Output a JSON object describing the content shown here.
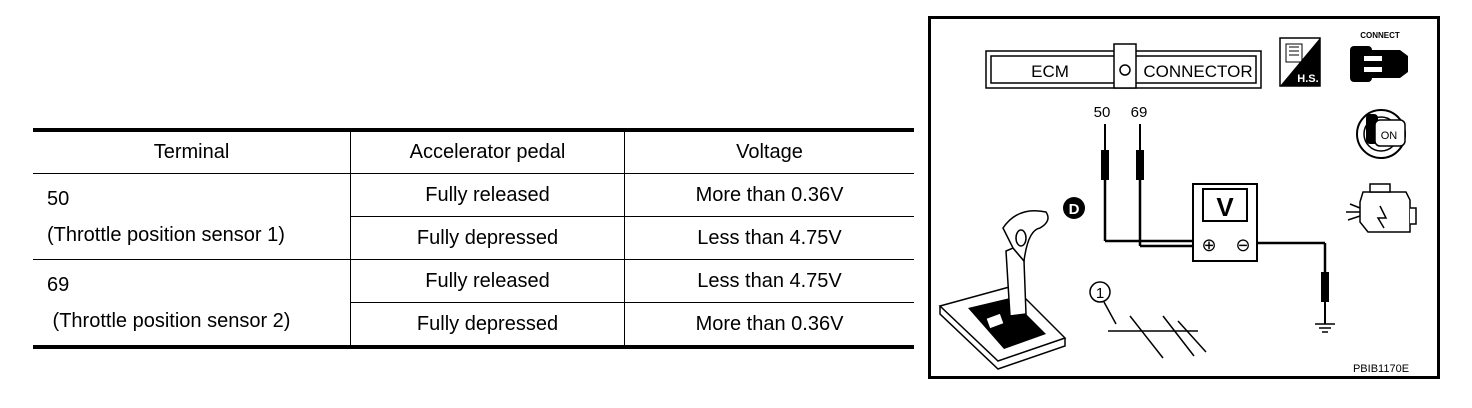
{
  "table": {
    "headers": [
      "Terminal",
      "Accelerator pedal",
      "Voltage"
    ],
    "rows": [
      {
        "terminal_number": "50",
        "terminal_name": "(Throttle position sensor 1)",
        "conditions": [
          {
            "pedal": "Fully released",
            "voltage": "More than 0.36V"
          },
          {
            "pedal": "Fully depressed",
            "voltage": "Less than 4.75V"
          }
        ]
      },
      {
        "terminal_number": "69",
        "terminal_name": " (Throttle position sensor 2)",
        "conditions": [
          {
            "pedal": "Fully released",
            "voltage": "Less than 4.75V"
          },
          {
            "pedal": "Fully depressed",
            "voltage": "More than 0.36V"
          }
        ]
      }
    ]
  },
  "diagram": {
    "connector_left": "ECM",
    "connector_right": "CONNECTOR",
    "pin_labels": [
      "50",
      "69"
    ],
    "meter_label": "V",
    "plus_sign": "⊕",
    "minus_sign": "⊖",
    "hs_label": "H.S.",
    "connect_label": "CONNECT",
    "on_label": "ON",
    "shift_position": "D",
    "callout_number": "1",
    "figure_code": "PBIB1170E"
  },
  "icons": [
    "hs-harness-icon",
    "connect-icon",
    "ignition-key-on-icon",
    "engine-running-icon",
    "shift-lever-icon",
    "ground-icon"
  ]
}
